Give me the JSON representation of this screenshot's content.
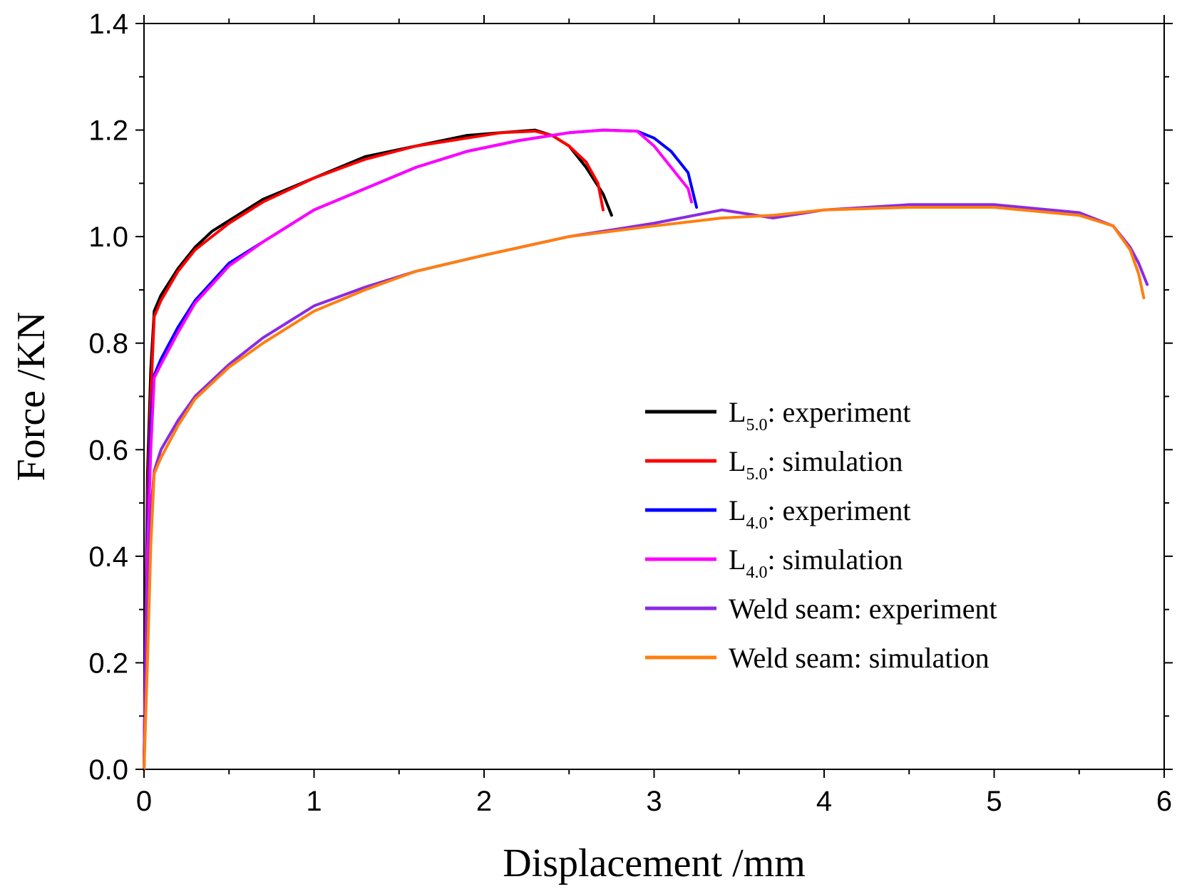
{
  "chart_data": {
    "type": "line",
    "xlabel": "Displacement /mm",
    "ylabel": "Force /KN",
    "xlim": [
      0,
      6
    ],
    "ylim": [
      0,
      1.4
    ],
    "xticks": [
      "0",
      "1",
      "2",
      "3",
      "4",
      "5",
      "6"
    ],
    "yticks": [
      "0.0",
      "0.2",
      "0.4",
      "0.6",
      "0.8",
      "1.0",
      "1.2",
      "1.4"
    ],
    "grid": false,
    "legend_position": "center-right",
    "series": [
      {
        "name": "L5.0: experiment",
        "legend_main": "L",
        "legend_sub": "5.0",
        "legend_rest": ": experiment",
        "color": "#000000",
        "x": [
          0,
          0.02,
          0.04,
          0.06,
          0.1,
          0.2,
          0.3,
          0.4,
          0.5,
          0.7,
          1.0,
          1.3,
          1.6,
          1.9,
          2.1,
          2.3,
          2.4,
          2.5,
          2.6,
          2.7,
          2.75
        ],
        "y": [
          0,
          0.55,
          0.75,
          0.86,
          0.89,
          0.94,
          0.98,
          1.01,
          1.03,
          1.07,
          1.11,
          1.15,
          1.17,
          1.19,
          1.195,
          1.2,
          1.19,
          1.17,
          1.13,
          1.08,
          1.04
        ]
      },
      {
        "name": "L5.0: simulation",
        "legend_main": "L",
        "legend_sub": "5.0",
        "legend_rest": ": simulation",
        "color": "#ff0000",
        "x": [
          0,
          0.02,
          0.04,
          0.06,
          0.1,
          0.2,
          0.3,
          0.4,
          0.5,
          0.7,
          1.0,
          1.3,
          1.6,
          1.9,
          2.1,
          2.3,
          2.4,
          2.5,
          2.6,
          2.67,
          2.7
        ],
        "y": [
          0,
          0.5,
          0.7,
          0.85,
          0.88,
          0.935,
          0.975,
          1.0,
          1.025,
          1.065,
          1.11,
          1.145,
          1.17,
          1.185,
          1.195,
          1.198,
          1.19,
          1.17,
          1.14,
          1.1,
          1.05
        ]
      },
      {
        "name": "L4.0: experiment",
        "legend_main": "L",
        "legend_sub": "4.0",
        "legend_rest": ": experiment",
        "color": "#0000ff",
        "x": [
          0,
          0.02,
          0.04,
          0.06,
          0.1,
          0.2,
          0.3,
          0.5,
          0.7,
          1.0,
          1.3,
          1.6,
          1.9,
          2.2,
          2.5,
          2.7,
          2.9,
          3.0,
          3.1,
          3.2,
          3.25
        ],
        "y": [
          0,
          0.45,
          0.65,
          0.74,
          0.77,
          0.83,
          0.88,
          0.95,
          0.99,
          1.05,
          1.09,
          1.13,
          1.16,
          1.18,
          1.195,
          1.2,
          1.198,
          1.185,
          1.16,
          1.12,
          1.055
        ]
      },
      {
        "name": "L4.0: simulation",
        "legend_main": "L",
        "legend_sub": "4.0",
        "legend_rest": ": simulation",
        "color": "#ff00ff",
        "x": [
          0,
          0.02,
          0.04,
          0.06,
          0.1,
          0.2,
          0.3,
          0.5,
          0.7,
          1.0,
          1.3,
          1.6,
          1.9,
          2.2,
          2.5,
          2.7,
          2.9,
          3.0,
          3.1,
          3.2,
          3.22
        ],
        "y": [
          0,
          0.4,
          0.6,
          0.735,
          0.76,
          0.82,
          0.875,
          0.945,
          0.99,
          1.05,
          1.09,
          1.13,
          1.16,
          1.18,
          1.195,
          1.2,
          1.198,
          1.17,
          1.13,
          1.09,
          1.065
        ]
      },
      {
        "name": "Weld seam: experiment",
        "legend_main": "Weld seam",
        "legend_sub": "",
        "legend_rest": ": experiment",
        "color": "#8a2be2",
        "x": [
          0,
          0.02,
          0.04,
          0.06,
          0.1,
          0.2,
          0.3,
          0.5,
          0.7,
          1.0,
          1.3,
          1.6,
          2.0,
          2.5,
          3.0,
          3.4,
          3.7,
          4.0,
          4.5,
          5.0,
          5.5,
          5.7,
          5.8,
          5.85,
          5.9
        ],
        "y": [
          0,
          0.3,
          0.48,
          0.56,
          0.6,
          0.655,
          0.7,
          0.76,
          0.81,
          0.87,
          0.905,
          0.935,
          0.965,
          1.0,
          1.025,
          1.05,
          1.035,
          1.05,
          1.06,
          1.06,
          1.045,
          1.02,
          0.98,
          0.95,
          0.91
        ]
      },
      {
        "name": "Weld seam: simulation",
        "legend_main": "Weld seam",
        "legend_sub": "",
        "legend_rest": ": simulation",
        "color": "#ff7f0e",
        "x": [
          0,
          0.02,
          0.04,
          0.06,
          0.1,
          0.2,
          0.3,
          0.5,
          0.7,
          1.0,
          1.3,
          1.6,
          2.0,
          2.5,
          3.0,
          3.4,
          3.7,
          4.0,
          4.5,
          5.0,
          5.5,
          5.7,
          5.8,
          5.85,
          5.88
        ],
        "y": [
          0,
          0.2,
          0.42,
          0.555,
          0.585,
          0.645,
          0.695,
          0.755,
          0.8,
          0.86,
          0.9,
          0.935,
          0.965,
          1.0,
          1.02,
          1.035,
          1.04,
          1.05,
          1.055,
          1.055,
          1.04,
          1.02,
          0.975,
          0.93,
          0.885
        ]
      }
    ]
  }
}
